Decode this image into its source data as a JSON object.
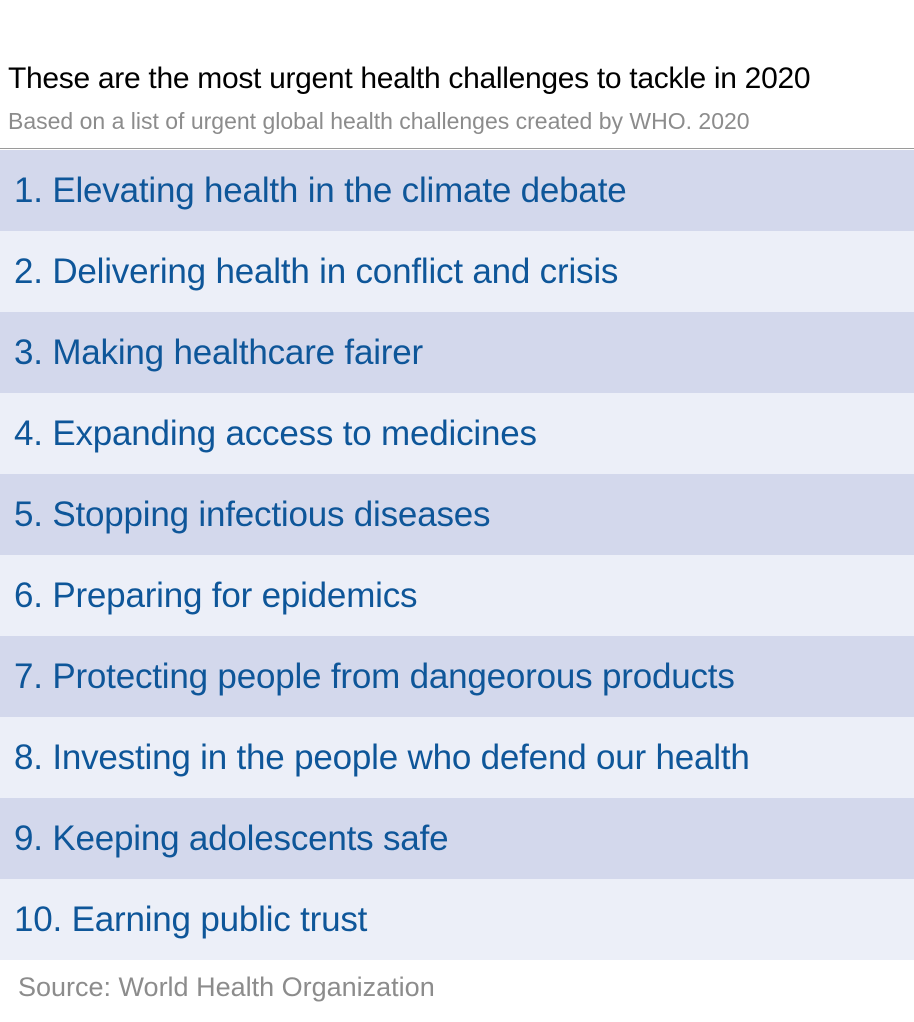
{
  "header": {
    "title": "These are the most urgent health challenges to tackle in 2020",
    "subtitle": "Based on a list of urgent global health challenges created by WHO. 2020"
  },
  "items": [
    "1. Elevating health in the climate debate",
    "2. Delivering health in conflict and crisis",
    "3. Making healthcare fairer",
    "4. Expanding access to medicines",
    "5. Stopping infectious diseases",
    "6. Preparing for epidemics",
    "7. Protecting people from dangeorous products",
    "8. Investing in the people who defend our health",
    "9. Keeping adolescents safe",
    "10. Earning public trust"
  ],
  "footer": {
    "source": "Source: World Health Organization"
  },
  "colors": {
    "row_dark": "#d3d8ec",
    "row_light": "#eceff8",
    "item_text": "#0e5699",
    "muted_text": "#8c8c8c"
  }
}
